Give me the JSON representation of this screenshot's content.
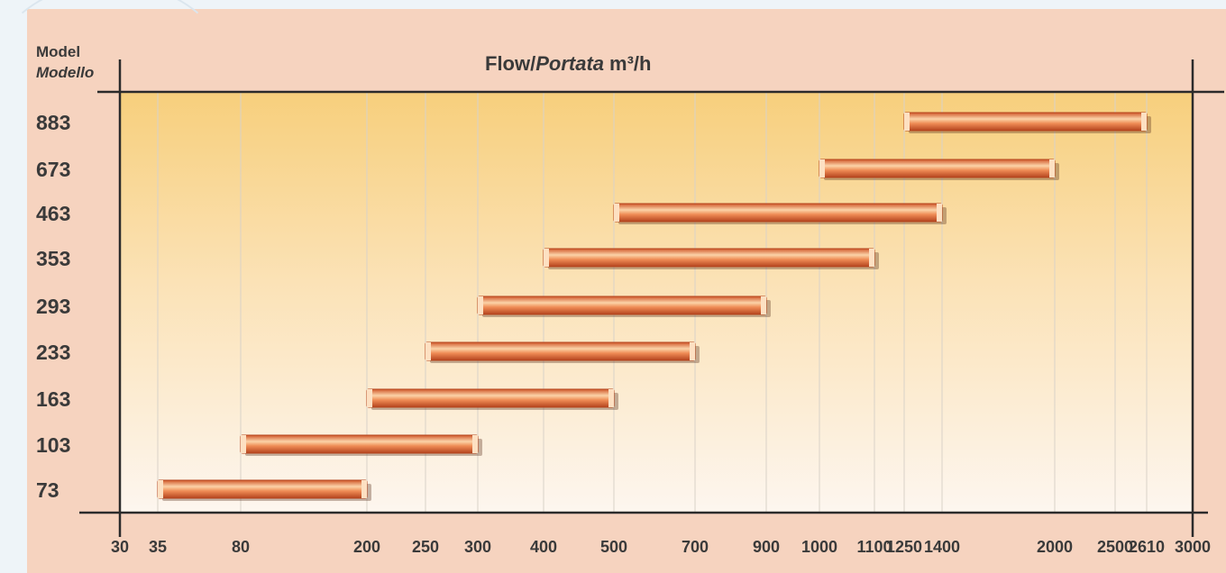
{
  "chart_data": {
    "type": "bar",
    "title": "Flow/",
    "title_italic": "Portata",
    "title_unit": "m³/h",
    "y_header_line1": "Model",
    "y_header_line2": "Modello",
    "x_ticks": [
      "30",
      "35",
      "80",
      "200",
      "250",
      "300",
      "400",
      "500",
      "700",
      "900",
      "1000",
      "1100",
      "1250",
      "1400",
      "2000",
      "2500",
      "2610",
      "3000"
    ],
    "categories": [
      "883",
      "673",
      "463",
      "353",
      "293",
      "233",
      "163",
      "103",
      "73"
    ],
    "ranges": [
      {
        "model": "883",
        "from": "1250",
        "to": "2610"
      },
      {
        "model": "673",
        "from": "1000",
        "to": "2000"
      },
      {
        "model": "463",
        "from": "500",
        "to": "1400"
      },
      {
        "model": "353",
        "from": "400",
        "to": "1100"
      },
      {
        "model": "293",
        "from": "300",
        "to": "900"
      },
      {
        "model": "233",
        "from": "250",
        "to": "700"
      },
      {
        "model": "163",
        "from": "200",
        "to": "500"
      },
      {
        "model": "103",
        "from": "80",
        "to": "300"
      },
      {
        "model": "73",
        "from": "35",
        "to": "200"
      }
    ],
    "xlim": [
      "30",
      "3000"
    ],
    "grid": true,
    "colors": {
      "bar": "#e8703a",
      "bar_highlight": "#fbd3a8",
      "bar_dark": "#b4441d",
      "plot_top": "#f7cf7c",
      "plot_bottom": "#fdf6ef",
      "frame": "#f6d3bf",
      "axis": "#2b2b2b",
      "text": "#3a3a3a",
      "grid": "#d9d2c8"
    }
  }
}
